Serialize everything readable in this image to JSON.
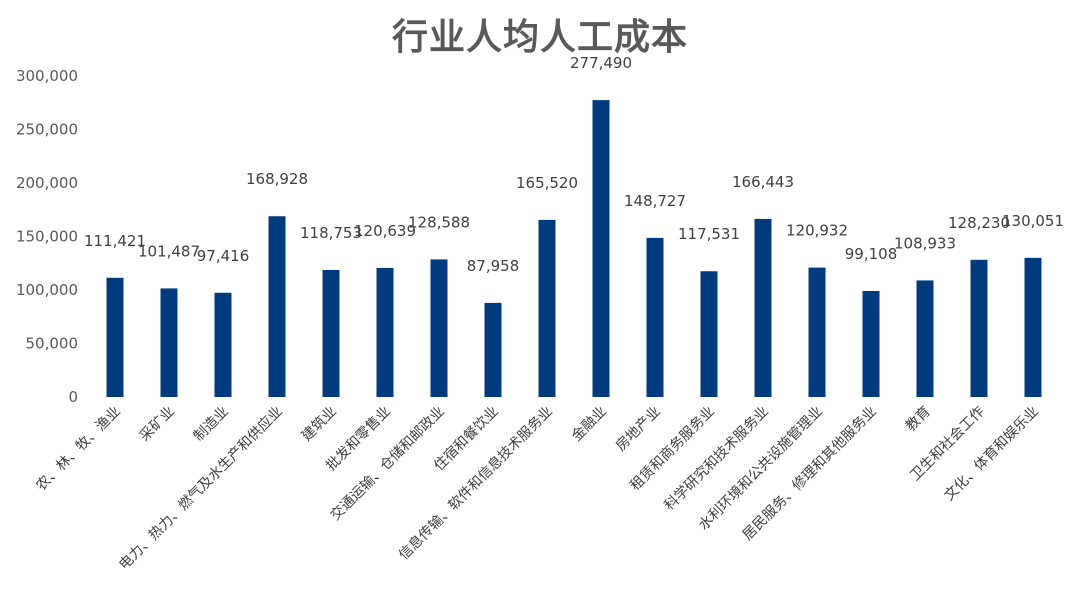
{
  "chart_data": {
    "type": "bar",
    "title": "行业人均人工成本",
    "xlabel": "",
    "ylabel": "",
    "ylim": [
      0,
      300000
    ],
    "yticks": [
      0,
      50000,
      100000,
      150000,
      200000,
      250000,
      300000
    ],
    "ytick_labels": [
      "0",
      "50,000",
      "100,000",
      "150,000",
      "200,000",
      "250,000",
      "300,000"
    ],
    "grid": false,
    "legend": "none",
    "bar_color": "#003b7d",
    "categories": [
      "农、林、牧、渔业",
      "采矿业",
      "制造业",
      "电力、热力、燃气及水生产和供应业",
      "建筑业",
      "批发和零售业",
      "交通运输、仓储和邮政业",
      "住宿和餐饮业",
      "信息传输、软件和信息技术服务业",
      "金融业",
      "房地产业",
      "租赁和商务服务业",
      "科学研究和技术服务业",
      "水利环境和公共设施管理业",
      "居民服务、修理和其他服务业",
      "教育",
      "卫生和社会工作",
      "文化、体育和娱乐业"
    ],
    "values": [
      111421,
      101487,
      97416,
      168928,
      118753,
      120639,
      128588,
      87958,
      165520,
      277490,
      148727,
      117531,
      166443,
      120932,
      99108,
      108933,
      128230,
      130051
    ],
    "data_labels": [
      "111,421",
      "101,487",
      "97,416",
      "168,928",
      "118,753",
      "120,639",
      "128,588",
      "87,958",
      "165,520",
      "277,490",
      "148,727",
      "117,531",
      "166,443",
      "120,932",
      "99,108",
      "108,933",
      "128,230",
      "130,051"
    ]
  }
}
